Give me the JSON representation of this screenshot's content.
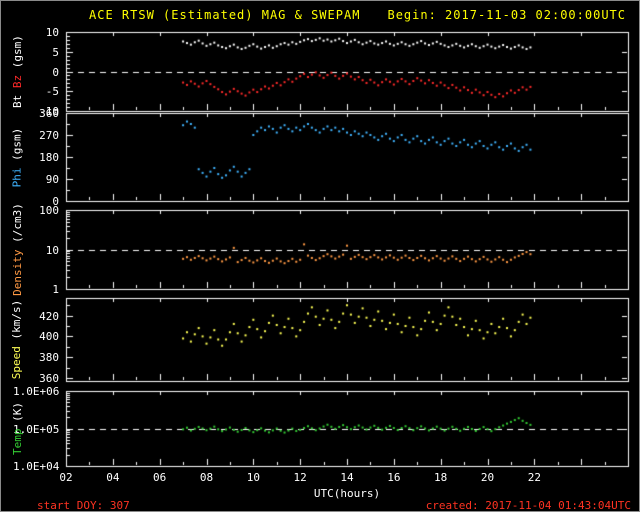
{
  "header": {
    "title": "ACE RTSW (Estimated) MAG & SWEPAM",
    "begin_label": "Begin: 2017-11-03 02:00:00UTC"
  },
  "footer": {
    "start_doy": "start DOY: 307",
    "created": "created: 2017-11-04 01:43:04UTC"
  },
  "colors": {
    "background": "#000000",
    "frame": "#ffffff",
    "title_text": "#ffff00",
    "footer_text": "#ff3322",
    "bt": "#ffffff",
    "bz": "#ff2a2a",
    "phi": "#40b4ff",
    "density": "#ff9944",
    "speed": "#ffff55",
    "temp": "#33cc33"
  },
  "chart_data": {
    "type": "scatter",
    "title": "ACE RTSW (Estimated) MAG & SWEPAM",
    "subtitle": "Begin: 2017-11-03 02:00:00UTC",
    "grid": false,
    "legend_position": "left-axis-labels",
    "sampling": {
      "x_start_hour": 7.0,
      "x_step_minutes": 10
    },
    "x_axis": {
      "label": "UTC(hours)",
      "range_hours": [
        2,
        26
      ],
      "major_tick_step": 2,
      "minor_tick_step": 1,
      "tick_labels": [
        {
          "value": 2,
          "label": "02"
        },
        {
          "value": 4,
          "label": "04"
        },
        {
          "value": 6,
          "label": "06"
        },
        {
          "value": 8,
          "label": "08"
        },
        {
          "value": 10,
          "label": "10"
        },
        {
          "value": 12,
          "label": "12"
        },
        {
          "value": 14,
          "label": "14"
        },
        {
          "value": 16,
          "label": "16"
        },
        {
          "value": 18,
          "label": "18"
        },
        {
          "value": 20,
          "label": "20"
        },
        {
          "value": 22,
          "label": "22"
        }
      ]
    },
    "panels": [
      {
        "id": "mag",
        "ylabel": [
          {
            "text": "Bt",
            "color": "#ffffff"
          },
          {
            "text": "Bz",
            "color": "#ff2a2a"
          },
          {
            "text": "(gsm)",
            "color": "#ffffff"
          }
        ],
        "scale": "linear",
        "ylim": [
          -10,
          10
        ],
        "minor_step": 1,
        "dashed_at": 0,
        "yticks": [
          {
            "value": 10,
            "label": "10"
          },
          {
            "value": 5,
            "label": "5"
          },
          {
            "value": 0,
            "label": "0"
          },
          {
            "value": -5,
            "label": "-5"
          },
          {
            "value": -10,
            "label": "-10"
          }
        ],
        "series": [
          {
            "name": "Bt",
            "color": "#ffffff",
            "values": [
              7.6,
              7.2,
              6.8,
              7.4,
              7.8,
              7.1,
              6.5,
              6.9,
              7.3,
              6.6,
              6.2,
              5.9,
              6.4,
              6.8,
              6.1,
              5.7,
              6.0,
              6.5,
              6.9,
              6.3,
              5.8,
              6.2,
              6.6,
              6.0,
              6.4,
              6.9,
              7.2,
              6.8,
              7.4,
              7.0,
              7.5,
              7.9,
              8.2,
              7.7,
              8.0,
              8.4,
              7.8,
              8.1,
              7.6,
              7.9,
              8.3,
              7.7,
              7.2,
              7.6,
              8.0,
              7.4,
              6.9,
              7.3,
              7.7,
              7.1,
              6.8,
              7.2,
              7.6,
              7.0,
              6.6,
              7.0,
              7.4,
              6.9,
              6.5,
              6.9,
              7.3,
              7.7,
              7.1,
              6.7,
              7.1,
              7.5,
              7.0,
              6.6,
              6.2,
              6.6,
              7.0,
              6.5,
              6.1,
              6.5,
              6.9,
              6.4,
              6.0,
              6.4,
              6.8,
              6.3,
              5.9,
              6.3,
              6.7,
              6.2,
              5.8,
              6.2,
              6.6,
              6.1,
              5.7,
              6.1
            ]
          },
          {
            "name": "Bz",
            "color": "#ff2a2a",
            "values": [
              -2.8,
              -3.4,
              -2.5,
              -3.1,
              -3.8,
              -3.0,
              -2.4,
              -3.2,
              -3.9,
              -4.5,
              -5.2,
              -5.8,
              -5.1,
              -4.4,
              -5.0,
              -5.6,
              -6.1,
              -5.3,
              -4.6,
              -5.2,
              -4.5,
              -3.8,
              -4.3,
              -3.6,
              -2.9,
              -3.5,
              -2.7,
              -2.0,
              -2.6,
              -1.8,
              -1.2,
              -0.6,
              -1.4,
              -0.8,
              -0.2,
              -1.0,
              -1.6,
              -0.9,
              -0.3,
              -1.1,
              -1.8,
              -1.1,
              -0.5,
              -1.3,
              -2.0,
              -1.4,
              -2.2,
              -2.9,
              -2.1,
              -2.8,
              -3.5,
              -2.7,
              -2.0,
              -2.6,
              -3.3,
              -2.5,
              -1.9,
              -2.5,
              -3.2,
              -2.4,
              -1.7,
              -2.3,
              -3.0,
              -2.2,
              -2.9,
              -3.6,
              -2.8,
              -3.5,
              -4.2,
              -3.4,
              -4.1,
              -4.8,
              -4.0,
              -4.7,
              -5.4,
              -4.6,
              -5.3,
              -6.0,
              -5.2,
              -5.9,
              -6.5,
              -5.7,
              -6.3,
              -5.5,
              -4.8,
              -5.4,
              -4.7,
              -4.0,
              -4.6,
              -3.9
            ]
          }
        ]
      },
      {
        "id": "phi",
        "ylabel": [
          {
            "text": "Phi",
            "color": "#40b4ff"
          },
          {
            "text": "(gsm)",
            "color": "#ffffff"
          }
        ],
        "scale": "linear",
        "ylim": [
          0,
          360
        ],
        "minor_step": 45,
        "dashed_at": null,
        "yticks": [
          {
            "value": 360,
            "label": "360"
          },
          {
            "value": 270,
            "label": "270"
          },
          {
            "value": 180,
            "label": "180"
          },
          {
            "value": 90,
            "label": "90"
          },
          {
            "value": 0,
            "label": "0"
          }
        ],
        "series": [
          {
            "name": "Phi",
            "color": "#40b4ff",
            "values": [
              310,
              325,
              315,
              300,
              130,
              115,
              100,
              120,
              135,
              110,
              95,
              105,
              125,
              140,
              120,
              100,
              115,
              130,
              270,
              285,
              300,
              290,
              305,
              295,
              280,
              300,
              310,
              295,
              285,
              300,
              290,
              305,
              315,
              300,
              290,
              280,
              295,
              305,
              290,
              300,
              285,
              295,
              280,
              270,
              285,
              275,
              265,
              280,
              270,
              260,
              250,
              265,
              275,
              255,
              245,
              260,
              270,
              250,
              240,
              255,
              265,
              245,
              235,
              250,
              260,
              240,
              230,
              245,
              255,
              235,
              225,
              240,
              250,
              230,
              220,
              235,
              245,
              225,
              215,
              230,
              240,
              220,
              210,
              225,
              235,
              215,
              205,
              220,
              230,
              210
            ]
          }
        ]
      },
      {
        "id": "density",
        "ylabel": [
          {
            "text": "Density",
            "color": "#ff9944"
          },
          {
            "text": "(/cm3)",
            "color": "#ffffff"
          }
        ],
        "scale": "log",
        "ylim": [
          1,
          100
        ],
        "dashed_at": 10,
        "yticks": [
          {
            "value": 100,
            "label": "100"
          },
          {
            "value": 10,
            "label": "10"
          },
          {
            "value": 1,
            "label": "1"
          }
        ],
        "series": [
          {
            "name": "Density",
            "color": "#ff9944",
            "values": [
              5.8,
              6.4,
              5.5,
              6.1,
              6.8,
              6.0,
              5.3,
              5.9,
              6.6,
              5.7,
              5.0,
              5.6,
              6.3,
              11.0,
              4.8,
              5.4,
              6.1,
              5.2,
              4.7,
              5.3,
              6.0,
              5.1,
              4.6,
              5.2,
              5.9,
              5.0,
              4.5,
              5.1,
              5.8,
              4.9,
              5.5,
              13.5,
              7.0,
              6.1,
              5.4,
              6.0,
              6.8,
              7.6,
              6.7,
              5.9,
              6.6,
              7.4,
              12.5,
              5.8,
              6.5,
              7.3,
              6.4,
              5.7,
              6.4,
              7.2,
              6.3,
              5.6,
              6.3,
              7.1,
              6.2,
              5.5,
              6.2,
              7.0,
              6.1,
              5.4,
              6.1,
              6.9,
              6.0,
              5.3,
              6.0,
              6.8,
              5.9,
              5.2,
              5.9,
              6.7,
              5.8,
              5.1,
              5.8,
              6.6,
              5.7,
              5.0,
              5.7,
              6.5,
              5.6,
              4.9,
              5.6,
              6.4,
              5.5,
              4.8,
              5.5,
              6.3,
              6.9,
              7.7,
              8.6,
              7.6
            ]
          }
        ]
      },
      {
        "id": "speed",
        "ylabel": [
          {
            "text": "Speed",
            "color": "#ffff55"
          },
          {
            "text": "(km/s)",
            "color": "#ffffff"
          }
        ],
        "scale": "linear",
        "ylim": [
          357,
          437
        ],
        "minor_step": 10,
        "dashed_at": null,
        "yticks": [
          {
            "value": 420,
            "label": "420"
          },
          {
            "value": 400,
            "label": "400"
          },
          {
            "value": 380,
            "label": "380"
          },
          {
            "value": 360,
            "label": "360"
          }
        ],
        "series": [
          {
            "name": "Speed",
            "color": "#ffff55",
            "values": [
              398,
              404,
              395,
              402,
              408,
              400,
              393,
              399,
              406,
              397,
              391,
              397,
              404,
              412,
              403,
              395,
              401,
              409,
              416,
              407,
              399,
              405,
              413,
              420,
              411,
              403,
              409,
              417,
              408,
              400,
              406,
              414,
              422,
              428,
              419,
              411,
              417,
              425,
              416,
              408,
              414,
              422,
              430,
              421,
              413,
              419,
              427,
              418,
              410,
              416,
              424,
              415,
              407,
              413,
              421,
              412,
              404,
              410,
              418,
              409,
              401,
              407,
              415,
              423,
              414,
              406,
              412,
              420,
              428,
              419,
              411,
              417,
              409,
              401,
              407,
              415,
              406,
              398,
              404,
              412,
              403,
              409,
              417,
              408,
              400,
              406,
              414,
              421,
              412,
              418
            ]
          }
        ]
      },
      {
        "id": "temp",
        "ylabel": [
          {
            "text": "Temp",
            "color": "#33cc33"
          },
          {
            "text": "(K)",
            "color": "#ffffff"
          }
        ],
        "scale": "log",
        "ylim": [
          10000,
          1000000
        ],
        "dashed_at": 100000,
        "yticks": [
          {
            "value": 1000000,
            "label": "1.0E+06"
          },
          {
            "value": 100000,
            "label": "1.0E+05"
          },
          {
            "value": 10000,
            "label": "1.0E+04"
          }
        ],
        "series": [
          {
            "name": "Temp",
            "color": "#33cc33",
            "values": [
              95000,
              105000,
              88000,
              98000,
              110000,
              100000,
              90000,
              99000,
              112000,
              95000,
              85000,
              94000,
              106000,
              92000,
              82000,
              91000,
              103000,
              89000,
              80000,
              90000,
              101000,
              88000,
              79000,
              89000,
              100000,
              87000,
              78000,
              88000,
              99000,
              86000,
              92000,
              103000,
              115000,
              101000,
              90000,
              100000,
              113000,
              126000,
              111000,
              98000,
              110000,
              123000,
              108000,
              96000,
              108000,
              120000,
              106000,
              94000,
              106000,
              118000,
              104000,
              93000,
              104000,
              117000,
              103000,
              91000,
              103000,
              115000,
              102000,
              90000,
              102000,
              114000,
              100000,
              89000,
              100000,
              112000,
              99000,
              88000,
              99000,
              111000,
              98000,
              87000,
              98000,
              110000,
              97000,
              86000,
              97000,
              109000,
              96000,
              85000,
              96000,
              108000,
              120000,
              135000,
              150000,
              168000,
              188000,
              160000,
              140000,
              125000
            ]
          }
        ]
      }
    ]
  }
}
